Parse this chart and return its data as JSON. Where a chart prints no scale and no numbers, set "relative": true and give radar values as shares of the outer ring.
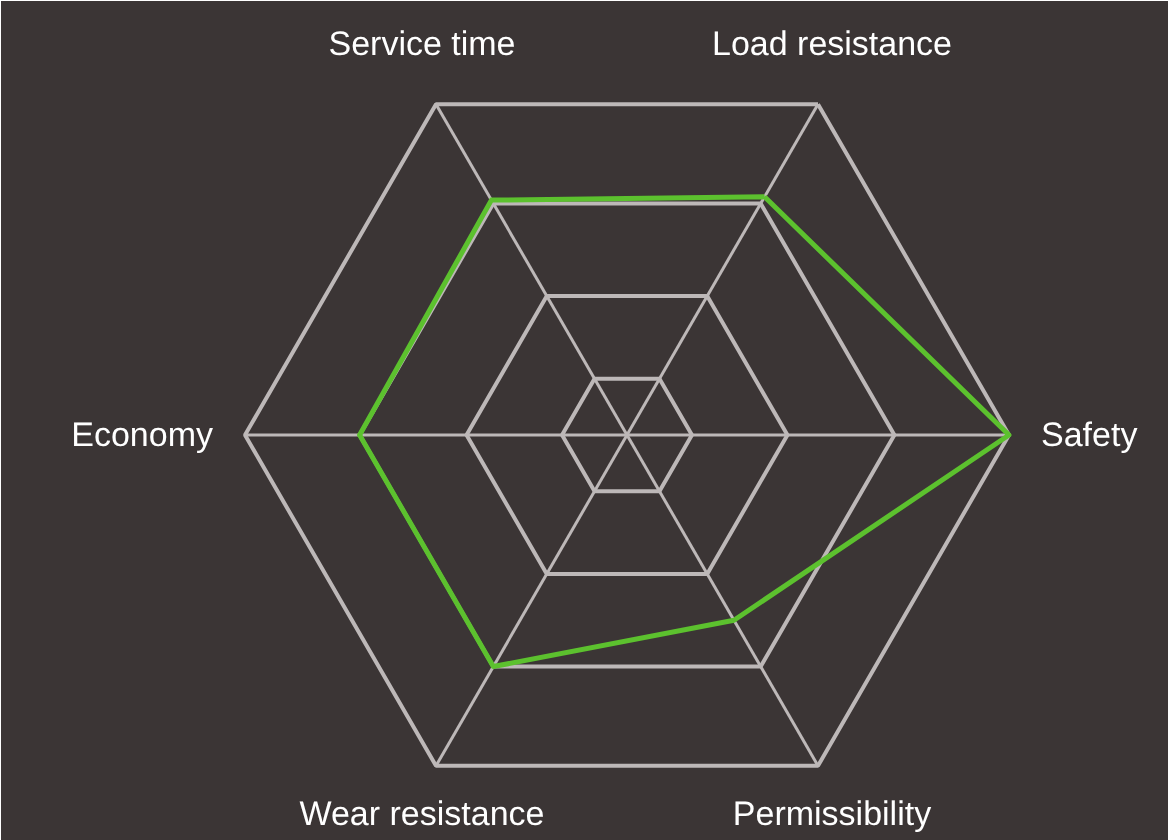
{
  "chart_data": {
    "type": "radar",
    "relative": true,
    "grid": true,
    "categories": [
      "Load resistance",
      "Safety",
      "Permissibility",
      "Wear resistance",
      "Economy",
      "Service time"
    ],
    "series": [
      {
        "color": "#5cc12e",
        "values": [
          0.72,
          1.0,
          0.56,
          0.7,
          0.7,
          0.71
        ]
      }
    ]
  }
}
